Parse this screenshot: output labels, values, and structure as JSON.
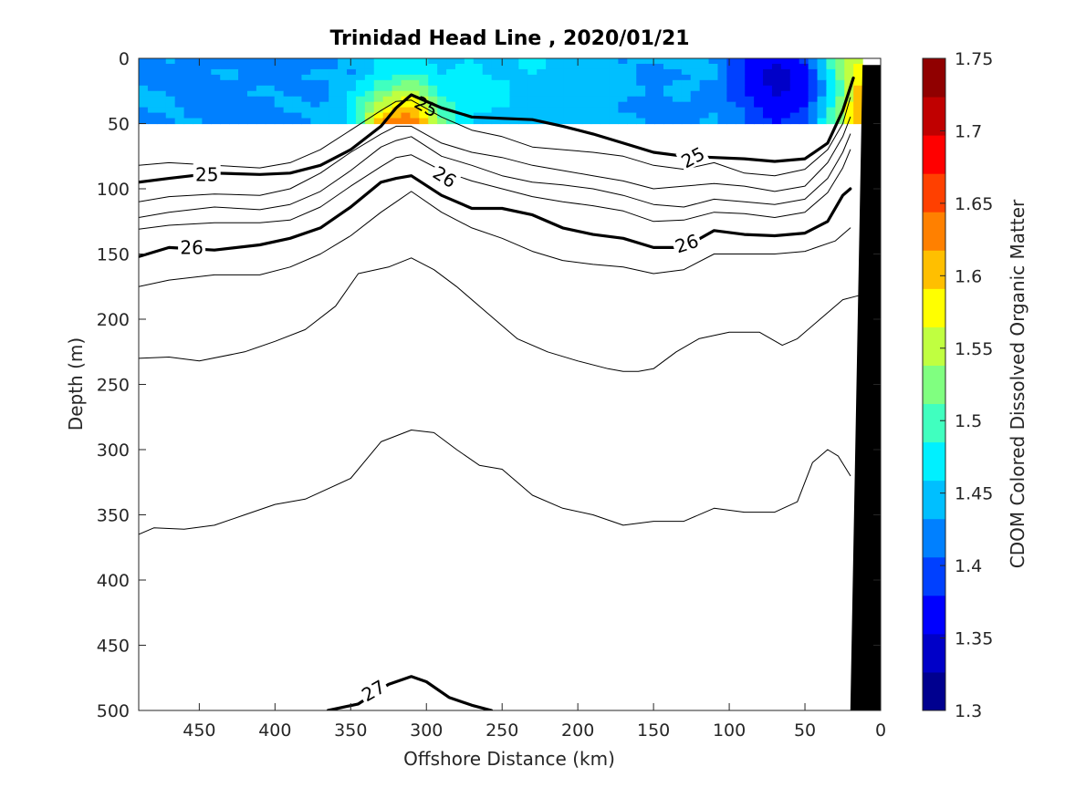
{
  "chart_data": {
    "type": "contour",
    "title": "Trinidad Head Line , 2020/01/21",
    "xlabel": "Offshore Distance (km)",
    "ylabel": "Depth (m)",
    "colorbar_label": "CDOM Colored Dissolved Organic Matter",
    "xlim": [
      490,
      0
    ],
    "ylim": [
      500,
      0
    ],
    "x_ticks": [
      "450",
      "400",
      "350",
      "300",
      "250",
      "200",
      "150",
      "100",
      "50",
      "0"
    ],
    "x_tick_values": [
      450,
      400,
      350,
      300,
      250,
      200,
      150,
      100,
      50,
      0
    ],
    "y_ticks": [
      "0",
      "50",
      "100",
      "150",
      "200",
      "250",
      "300",
      "350",
      "400",
      "450",
      "500"
    ],
    "y_tick_values": [
      0,
      50,
      100,
      150,
      200,
      250,
      300,
      350,
      400,
      450,
      500
    ],
    "colorbar": {
      "range": [
        1.3,
        1.75
      ],
      "ticks": [
        "1.3",
        "1.35",
        "1.4",
        "1.45",
        "1.5",
        "1.55",
        "1.6",
        "1.65",
        "1.7",
        "1.75"
      ],
      "tick_values": [
        1.3,
        1.35,
        1.4,
        1.45,
        1.5,
        1.55,
        1.6,
        1.65,
        1.7,
        1.75
      ],
      "colors": [
        "#00008f",
        "#0000c8",
        "#0000ff",
        "#0040ff",
        "#0080ff",
        "#00bfff",
        "#00f0ff",
        "#40ffbf",
        "#80ff80",
        "#c0ff40",
        "#ffff00",
        "#ffbf00",
        "#ff8000",
        "#ff4000",
        "#ff0000",
        "#c00000",
        "#900000"
      ]
    },
    "cdom_field": {
      "depth_range": [
        0,
        50
      ],
      "x_range": [
        490,
        12
      ],
      "x": [
        490,
        470,
        450,
        430,
        410,
        390,
        370,
        350,
        330,
        310,
        290,
        270,
        250,
        230,
        210,
        190,
        170,
        150,
        130,
        110,
        90,
        70,
        50,
        30,
        15
      ],
      "depth": [
        0,
        12,
        25,
        37,
        50
      ],
      "values": [
        [
          1.43,
          1.44,
          1.42,
          1.41,
          1.43,
          1.4,
          1.42,
          1.44,
          1.46,
          1.47,
          1.45,
          1.46,
          1.44,
          1.47,
          1.45,
          1.44,
          1.43,
          1.44,
          1.45,
          1.43,
          1.38,
          1.36,
          1.39,
          1.52,
          1.55
        ],
        [
          1.42,
          1.4,
          1.43,
          1.44,
          1.41,
          1.43,
          1.44,
          1.43,
          1.47,
          1.49,
          1.46,
          1.47,
          1.45,
          1.46,
          1.44,
          1.45,
          1.44,
          1.42,
          1.43,
          1.44,
          1.37,
          1.34,
          1.36,
          1.5,
          1.58
        ],
        [
          1.44,
          1.43,
          1.41,
          1.42,
          1.44,
          1.43,
          1.42,
          1.46,
          1.51,
          1.55,
          1.48,
          1.46,
          1.47,
          1.44,
          1.45,
          1.43,
          1.44,
          1.43,
          1.44,
          1.42,
          1.38,
          1.35,
          1.36,
          1.48,
          1.6
        ],
        [
          1.43,
          1.44,
          1.42,
          1.43,
          1.42,
          1.44,
          1.43,
          1.47,
          1.56,
          1.6,
          1.5,
          1.47,
          1.46,
          1.45,
          1.44,
          1.45,
          1.43,
          1.42,
          1.43,
          1.43,
          1.4,
          1.36,
          1.38,
          1.5,
          1.62
        ],
        [
          1.42,
          1.43,
          1.44,
          1.41,
          1.43,
          1.42,
          1.44,
          1.46,
          1.62,
          1.66,
          1.52,
          1.45,
          1.44,
          1.46,
          1.43,
          1.44,
          1.44,
          1.43,
          1.42,
          1.44,
          1.41,
          1.38,
          1.4,
          1.52,
          1.6
        ]
      ]
    },
    "density_contours": [
      {
        "x": [
          490,
          470,
          440,
          410,
          390,
          370,
          350,
          330,
          320,
          310,
          290,
          270,
          250,
          230,
          210,
          190,
          170,
          150,
          130,
          110,
          90,
          70,
          50,
          35,
          25,
          18
        ],
        "depth": [
          95,
          92,
          88,
          89,
          88,
          82,
          70,
          52,
          38,
          28,
          38,
          45,
          46,
          47,
          52,
          58,
          65,
          72,
          75,
          76,
          77,
          79,
          77,
          65,
          40,
          15
        ],
        "bold": true
      },
      {
        "x": [
          490,
          470,
          440,
          410,
          390,
          370,
          350,
          330,
          320,
          310,
          290,
          270,
          250,
          230,
          210,
          190,
          170,
          150,
          130,
          110,
          90,
          70,
          50,
          35,
          25,
          20
        ],
        "depth": [
          82,
          80,
          82,
          84,
          80,
          70,
          55,
          40,
          33,
          32,
          45,
          55,
          60,
          68,
          70,
          72,
          75,
          82,
          85,
          80,
          88,
          90,
          85,
          70,
          50,
          30
        ],
        "bold": false
      },
      {
        "x": [
          490,
          470,
          440,
          410,
          390,
          370,
          350,
          330,
          320,
          310,
          290,
          270,
          250,
          230,
          210,
          190,
          170,
          150,
          130,
          110,
          90,
          70,
          50,
          35,
          25,
          20
        ],
        "depth": [
          110,
          106,
          104,
          105,
          100,
          88,
          72,
          58,
          52,
          52,
          65,
          72,
          76,
          82,
          86,
          90,
          94,
          100,
          98,
          96,
          98,
          102,
          98,
          80,
          60,
          45
        ],
        "bold": false
      },
      {
        "x": [
          490,
          470,
          440,
          410,
          390,
          370,
          350,
          330,
          320,
          310,
          290,
          270,
          250,
          230,
          210,
          190,
          170,
          150,
          130,
          110,
          90,
          70,
          50,
          35,
          25,
          20
        ],
        "depth": [
          122,
          118,
          114,
          116,
          112,
          102,
          86,
          68,
          63,
          60,
          75,
          82,
          90,
          95,
          97,
          100,
          105,
          112,
          114,
          108,
          110,
          112,
          108,
          92,
          72,
          58
        ],
        "bold": false
      },
      {
        "x": [
          490,
          470,
          440,
          410,
          390,
          370,
          350,
          330,
          320,
          310,
          290,
          270,
          250,
          230,
          210,
          190,
          170,
          150,
          130,
          110,
          90,
          70,
          50,
          35,
          25,
          20
        ],
        "depth": [
          131,
          128,
          126,
          126,
          124,
          114,
          98,
          83,
          76,
          74,
          86,
          94,
          100,
          106,
          110,
          113,
          117,
          125,
          124,
          118,
          119,
          122,
          118,
          103,
          84,
          70
        ],
        "bold": false
      },
      {
        "x": [
          490,
          470,
          440,
          410,
          390,
          370,
          350,
          330,
          320,
          310,
          290,
          270,
          250,
          230,
          210,
          190,
          170,
          150,
          130,
          110,
          90,
          70,
          50,
          35,
          25,
          20
        ],
        "depth": [
          152,
          145,
          147,
          143,
          138,
          130,
          114,
          95,
          92,
          90,
          105,
          115,
          115,
          120,
          130,
          135,
          138,
          145,
          145,
          132,
          135,
          136,
          134,
          125,
          105,
          100
        ],
        "bold": true
      },
      {
        "x": [
          490,
          470,
          440,
          410,
          390,
          370,
          350,
          330,
          320,
          310,
          290,
          270,
          250,
          230,
          210,
          190,
          170,
          150,
          130,
          110,
          90,
          70,
          50,
          30,
          20
        ],
        "depth": [
          175,
          170,
          166,
          166,
          160,
          150,
          136,
          118,
          110,
          102,
          118,
          130,
          138,
          148,
          155,
          158,
          160,
          165,
          162,
          150,
          150,
          150,
          148,
          140,
          130
        ],
        "bold": false
      },
      {
        "x": [
          490,
          470,
          450,
          420,
          400,
          380,
          360,
          345,
          325,
          310,
          295,
          280,
          260,
          240,
          220,
          200,
          180,
          170,
          160,
          150,
          135,
          120,
          100,
          80,
          65,
          55,
          40,
          25,
          15
        ],
        "depth": [
          230,
          229,
          232,
          225,
          217,
          208,
          190,
          165,
          160,
          153,
          162,
          175,
          195,
          215,
          225,
          232,
          238,
          240,
          240,
          238,
          225,
          215,
          210,
          210,
          220,
          215,
          200,
          185,
          182
        ],
        "bold": false
      },
      {
        "x": [
          490,
          480,
          460,
          440,
          420,
          400,
          380,
          350,
          330,
          310,
          295,
          280,
          265,
          250,
          230,
          210,
          190,
          170,
          150,
          130,
          110,
          90,
          70,
          55,
          45,
          35,
          28,
          20
        ],
        "depth": [
          365,
          360,
          361,
          358,
          350,
          342,
          338,
          322,
          294,
          285,
          287,
          300,
          312,
          315,
          335,
          345,
          350,
          358,
          355,
          355,
          345,
          348,
          348,
          340,
          310,
          300,
          305,
          320
        ],
        "bold": false
      },
      {
        "x": [
          365,
          345,
          325,
          310,
          300,
          285,
          270,
          257
        ],
        "depth": [
          500,
          495,
          480,
          474,
          478,
          490,
          496,
          500
        ],
        "bold": true
      }
    ],
    "contour_labels": [
      {
        "text": "25",
        "x": 300,
        "depth": 37,
        "rotate": 30
      },
      {
        "text": "25",
        "x": 445,
        "depth": 89,
        "rotate": 0
      },
      {
        "text": "25",
        "x": 124,
        "depth": 76,
        "rotate": -28
      },
      {
        "text": "26",
        "x": 288,
        "depth": 91,
        "rotate": 32
      },
      {
        "text": "26",
        "x": 455,
        "depth": 145,
        "rotate": 0
      },
      {
        "text": "26",
        "x": 128,
        "depth": 142,
        "rotate": -18
      },
      {
        "text": "27",
        "x": 335,
        "depth": 485,
        "rotate": -30
      }
    ],
    "bathymetry": {
      "x": [
        25,
        0,
        0,
        12,
        20
      ],
      "depth": [
        500,
        500,
        5,
        5,
        500
      ]
    }
  }
}
